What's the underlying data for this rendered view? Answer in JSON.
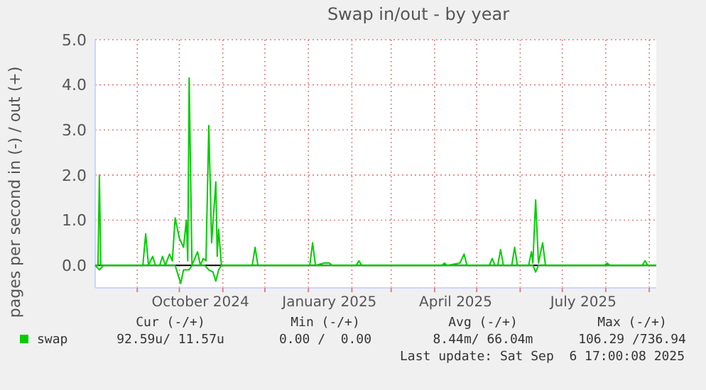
{
  "chart_data": {
    "type": "line",
    "title": "Swap in/out - by year",
    "ylabel": "pages per second in (-) / out (+)",
    "xlim": [
      "2024-08-02",
      "2025-09-06"
    ],
    "ylim": [
      -0.5,
      5.0
    ],
    "yticks": [
      {
        "value": 0,
        "label": "0.0"
      },
      {
        "value": 1,
        "label": "1.0"
      },
      {
        "value": 2,
        "label": "2.0"
      },
      {
        "value": 3,
        "label": "3.0"
      },
      {
        "value": 4,
        "label": "4.0"
      },
      {
        "value": 5,
        "label": "5.0"
      }
    ],
    "xticks": [
      {
        "value": "2024-09-01",
        "label": null
      },
      {
        "value": "2024-10-01",
        "label": null
      },
      {
        "value": "2024-10-16",
        "label": "October 2024"
      },
      {
        "value": "2024-11-01",
        "label": null
      },
      {
        "value": "2024-12-01",
        "label": null
      },
      {
        "value": "2025-01-01",
        "label": null
      },
      {
        "value": "2025-01-16",
        "label": "January 2025"
      },
      {
        "value": "2025-02-01",
        "label": null
      },
      {
        "value": "2025-03-01",
        "label": null
      },
      {
        "value": "2025-04-01",
        "label": null
      },
      {
        "value": "2025-04-16",
        "label": "April 2025"
      },
      {
        "value": "2025-05-01",
        "label": null
      },
      {
        "value": "2025-06-01",
        "label": null
      },
      {
        "value": "2025-07-01",
        "label": null
      },
      {
        "value": "2025-07-16",
        "label": "July 2025"
      },
      {
        "value": "2025-08-01",
        "label": null
      },
      {
        "value": "2025-09-01",
        "label": null
      }
    ],
    "grid": true,
    "legend": "bottom",
    "series": [
      {
        "name": "swap",
        "color": "#00cc00",
        "x": [
          "2024-08-02",
          "2024-08-04",
          "2024-08-05",
          "2024-08-06",
          "2024-09-05",
          "2024-09-07",
          "2024-09-09",
          "2024-09-12",
          "2024-09-14",
          "2024-09-17",
          "2024-09-19",
          "2024-09-21",
          "2024-09-24",
          "2024-09-26",
          "2024-09-28",
          "2024-10-01",
          "2024-10-04",
          "2024-10-06",
          "2024-10-07",
          "2024-10-08",
          "2024-10-10",
          "2024-10-14",
          "2024-10-16",
          "2024-10-18",
          "2024-10-20",
          "2024-10-22",
          "2024-10-24",
          "2024-10-27",
          "2024-10-28",
          "2024-10-29",
          "2024-10-31",
          "2024-11-22",
          "2024-11-24",
          "2024-11-26",
          "2025-01-02",
          "2025-01-04",
          "2025-01-06",
          "2025-01-12",
          "2025-01-16",
          "2025-01-18",
          "2025-02-04",
          "2025-02-06",
          "2025-02-08",
          "2025-04-06",
          "2025-04-08",
          "2025-04-10",
          "2025-04-19",
          "2025-04-22",
          "2025-04-24",
          "2025-05-10",
          "2025-05-12",
          "2025-05-14",
          "2025-05-16",
          "2025-05-18",
          "2025-05-20",
          "2025-05-26",
          "2025-05-28",
          "2025-05-30",
          "2025-06-07",
          "2025-06-09",
          "2025-06-10",
          "2025-06-12",
          "2025-06-14",
          "2025-06-17",
          "2025-06-19",
          "2025-07-31",
          "2025-08-02",
          "2025-08-04",
          "2025-08-27",
          "2025-08-29",
          "2025-08-31",
          "2025-09-06"
        ],
        "values": [
          0,
          0,
          2.0,
          0,
          0,
          0.7,
          0,
          0.2,
          0,
          0,
          0.2,
          0,
          0.25,
          0.1,
          1.05,
          0.6,
          0.4,
          1.0,
          0.1,
          4.15,
          0,
          0.3,
          0,
          0.15,
          0.1,
          3.1,
          0.5,
          1.85,
          0.2,
          0.8,
          0,
          0,
          0.4,
          0,
          0,
          0.5,
          0,
          0.05,
          0.05,
          0,
          0,
          0.1,
          0,
          0,
          0.05,
          0,
          0.05,
          0.25,
          0,
          0,
          0.15,
          0,
          0,
          0.35,
          0,
          0,
          0.4,
          0,
          0,
          0.3,
          0.05,
          1.45,
          0.05,
          0.5,
          0,
          0,
          0.05,
          0,
          0,
          0.1,
          0,
          0
        ]
      },
      {
        "color": "#00cc00",
        "x": [
          "2024-08-02",
          "2024-08-05",
          "2024-08-08",
          "2024-09-28",
          "2024-10-02",
          "2024-10-04",
          "2024-10-08",
          "2024-10-10",
          "2024-10-19",
          "2024-10-22",
          "2024-10-25",
          "2024-10-27",
          "2024-10-29",
          "2024-10-31",
          "2025-06-10",
          "2025-06-12",
          "2025-06-14",
          "2025-09-06"
        ],
        "values": [
          0,
          -0.1,
          0,
          0,
          -0.4,
          -0.1,
          -0.1,
          0,
          0,
          -0.1,
          -0.15,
          -0.35,
          -0.1,
          0,
          0,
          -0.15,
          0,
          0
        ]
      }
    ],
    "annotations": [
      "Cur (-/+)",
      "Min (-/+)",
      "Avg (-/+)",
      "Max (-/+)",
      "92.59u/ 11.57u",
      "0.00 /  0.00",
      "8.44m/ 66.04m",
      "106.29 /736.94",
      "Last update: Sat Sep  6 17:00:08 2025"
    ]
  }
}
